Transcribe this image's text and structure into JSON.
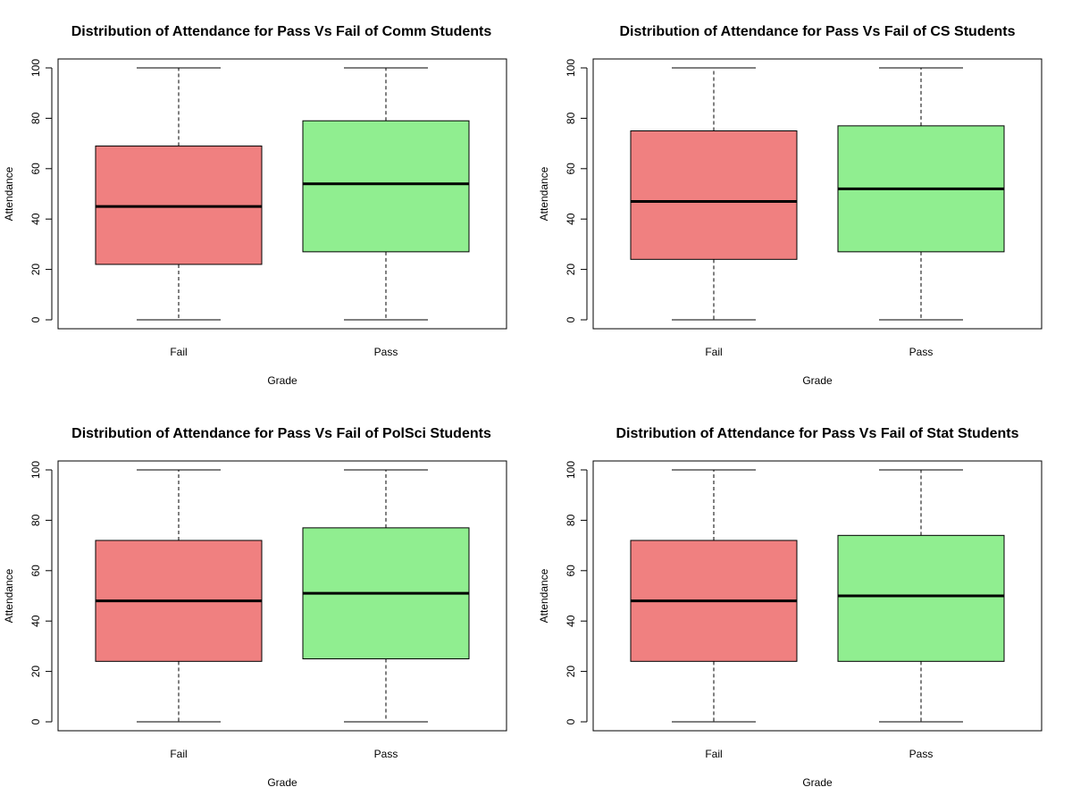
{
  "chart_data": [
    {
      "type": "boxplot",
      "title": "Distribution of Attendance for Pass Vs Fail of Comm Students",
      "xlabel": "Grade",
      "ylabel": "Attendance",
      "ylim": [
        0,
        100
      ],
      "yticks": [
        "0",
        "20",
        "40",
        "60",
        "80",
        "100"
      ],
      "categories": [
        "Fail",
        "Pass"
      ],
      "colors": [
        "#f08080",
        "#90ee90"
      ],
      "boxes": [
        {
          "min": 0,
          "q1": 22,
          "median": 45,
          "q3": 69,
          "max": 100
        },
        {
          "min": 0,
          "q1": 27,
          "median": 54,
          "q3": 79,
          "max": 100
        }
      ]
    },
    {
      "type": "boxplot",
      "title": "Distribution of Attendance for Pass Vs Fail of CS Students",
      "xlabel": "Grade",
      "ylabel": "Attendance",
      "ylim": [
        0,
        100
      ],
      "yticks": [
        "0",
        "20",
        "40",
        "60",
        "80",
        "100"
      ],
      "categories": [
        "Fail",
        "Pass"
      ],
      "colors": [
        "#f08080",
        "#90ee90"
      ],
      "boxes": [
        {
          "min": 0,
          "q1": 24,
          "median": 47,
          "q3": 75,
          "max": 100
        },
        {
          "min": 0,
          "q1": 27,
          "median": 52,
          "q3": 77,
          "max": 100
        }
      ]
    },
    {
      "type": "boxplot",
      "title": "Distribution of Attendance for Pass Vs Fail of PolSci Students",
      "xlabel": "Grade",
      "ylabel": "Attendance",
      "ylim": [
        0,
        100
      ],
      "yticks": [
        "0",
        "20",
        "40",
        "60",
        "80",
        "100"
      ],
      "categories": [
        "Fail",
        "Pass"
      ],
      "colors": [
        "#f08080",
        "#90ee90"
      ],
      "boxes": [
        {
          "min": 0,
          "q1": 24,
          "median": 48,
          "q3": 72,
          "max": 100
        },
        {
          "min": 0,
          "q1": 25,
          "median": 51,
          "q3": 77,
          "max": 100
        }
      ]
    },
    {
      "type": "boxplot",
      "title": "Distribution of Attendance for Pass Vs Fail of Stat Students",
      "xlabel": "Grade",
      "ylabel": "Attendance",
      "ylim": [
        0,
        100
      ],
      "yticks": [
        "0",
        "20",
        "40",
        "60",
        "80",
        "100"
      ],
      "categories": [
        "Fail",
        "Pass"
      ],
      "colors": [
        "#f08080",
        "#90ee90"
      ],
      "boxes": [
        {
          "min": 0,
          "q1": 24,
          "median": 48,
          "q3": 72,
          "max": 100
        },
        {
          "min": 0,
          "q1": 24,
          "median": 50,
          "q3": 74,
          "max": 100
        }
      ]
    }
  ]
}
